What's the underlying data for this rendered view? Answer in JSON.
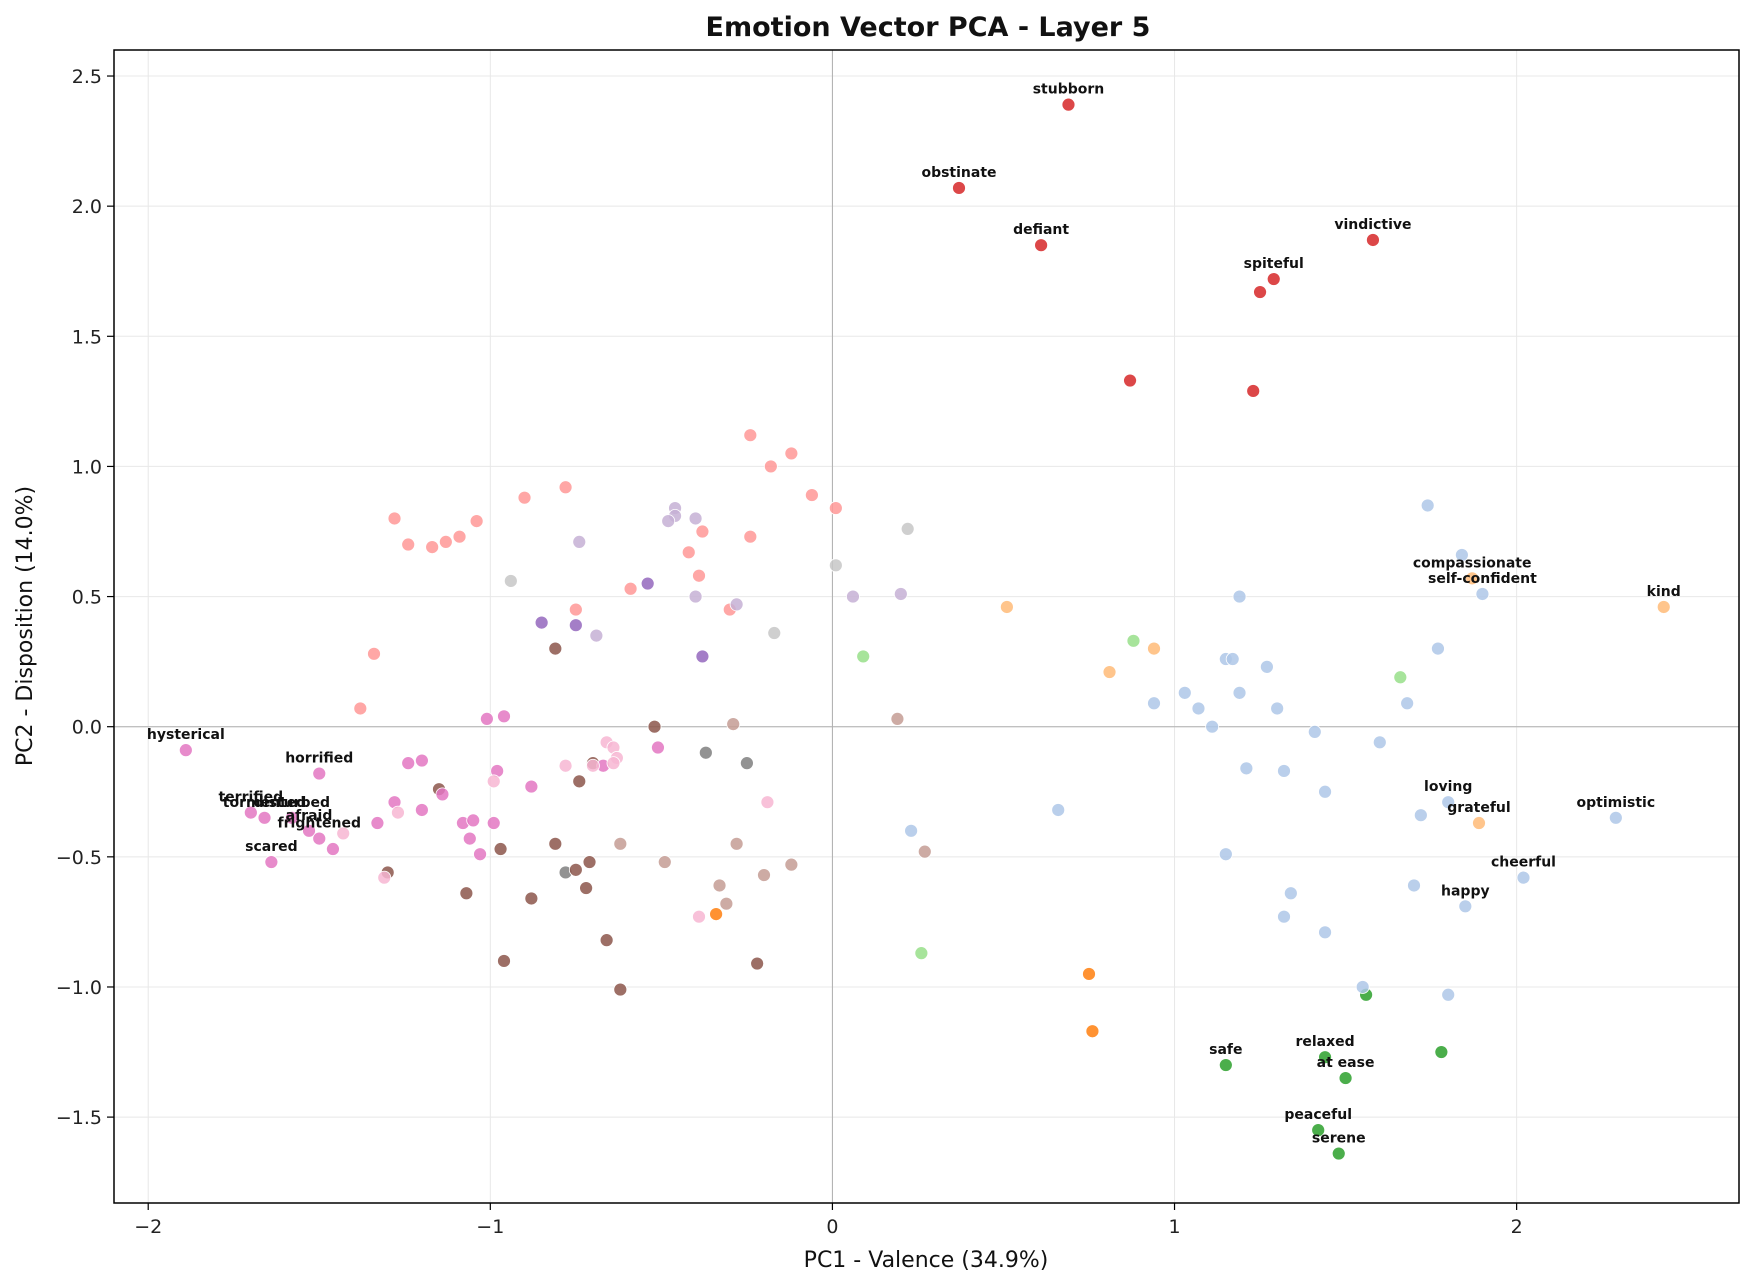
{
  "chart_data": {
    "type": "scatter",
    "title": "Emotion Vector PCA - Layer 5",
    "xlabel": "PC1 - Valence (34.9%)",
    "ylabel": "PC2 - Disposition (14.0%)",
    "xlim": [
      -2.1,
      2.65
    ],
    "ylim": [
      -1.83,
      2.6
    ],
    "xticks": [
      -2,
      -1,
      0,
      1,
      2
    ],
    "xtick_labels": [
      "−2",
      "−1",
      "0",
      "1",
      "2"
    ],
    "yticks": [
      -1.5,
      -1.0,
      -0.5,
      0.0,
      0.5,
      1.0,
      1.5,
      2.0,
      2.5
    ],
    "ytick_labels": [
      "−1.5",
      "−1.0",
      "−0.5",
      "0.0",
      "0.5",
      "1.0",
      "1.5",
      "2.0",
      "2.5"
    ],
    "grid": true,
    "zero_lines": true,
    "series": [
      {
        "color": "#d62728",
        "points": [
          [
            0.69,
            2.39,
            "stubborn"
          ],
          [
            0.37,
            2.07,
            "obstinate"
          ],
          [
            0.61,
            1.85,
            "defiant"
          ],
          [
            1.58,
            1.87,
            "vindictive"
          ],
          [
            1.29,
            1.72,
            "spiteful"
          ],
          [
            1.25,
            1.67,
            ""
          ],
          [
            0.87,
            1.33,
            ""
          ],
          [
            1.23,
            1.29,
            ""
          ]
        ]
      },
      {
        "color": "#ff9896",
        "points": [
          [
            -0.24,
            1.12,
            ""
          ],
          [
            -0.12,
            1.05,
            ""
          ],
          [
            -0.18,
            1.0,
            ""
          ],
          [
            -0.06,
            0.89,
            ""
          ],
          [
            0.01,
            0.84,
            ""
          ],
          [
            -0.78,
            0.92,
            ""
          ],
          [
            -0.9,
            0.88,
            ""
          ],
          [
            -1.28,
            0.8,
            ""
          ],
          [
            -1.04,
            0.79,
            ""
          ],
          [
            -1.09,
            0.73,
            ""
          ],
          [
            -1.13,
            0.71,
            ""
          ],
          [
            -1.17,
            0.69,
            ""
          ],
          [
            -1.24,
            0.7,
            ""
          ],
          [
            -0.38,
            0.75,
            ""
          ],
          [
            -0.24,
            0.73,
            ""
          ],
          [
            -0.42,
            0.67,
            ""
          ],
          [
            -0.39,
            0.58,
            ""
          ],
          [
            -0.59,
            0.53,
            ""
          ],
          [
            -0.75,
            0.45,
            ""
          ],
          [
            -0.3,
            0.45,
            ""
          ],
          [
            -1.34,
            0.28,
            ""
          ],
          [
            -1.38,
            0.07,
            ""
          ]
        ]
      },
      {
        "color": "#c5b0d5",
        "points": [
          [
            -0.46,
            0.84,
            ""
          ],
          [
            -0.46,
            0.81,
            ""
          ],
          [
            -0.48,
            0.79,
            ""
          ],
          [
            -0.4,
            0.8,
            ""
          ],
          [
            -0.74,
            0.71,
            ""
          ],
          [
            -0.4,
            0.5,
            ""
          ],
          [
            -0.28,
            0.47,
            ""
          ],
          [
            -0.69,
            0.35,
            ""
          ],
          [
            0.06,
            0.5,
            ""
          ],
          [
            0.2,
            0.51,
            ""
          ]
        ]
      },
      {
        "color": "#9467bd",
        "points": [
          [
            -0.54,
            0.55,
            ""
          ],
          [
            -0.85,
            0.4,
            ""
          ],
          [
            -0.75,
            0.39,
            ""
          ],
          [
            -0.38,
            0.27,
            ""
          ]
        ]
      },
      {
        "color": "#c7c7c7",
        "points": [
          [
            -0.94,
            0.56,
            ""
          ],
          [
            0.01,
            0.62,
            ""
          ],
          [
            0.22,
            0.76,
            ""
          ],
          [
            -0.17,
            0.36,
            ""
          ]
        ]
      },
      {
        "color": "#7f7f7f",
        "points": [
          [
            -0.37,
            -0.1,
            ""
          ],
          [
            -0.25,
            -0.14,
            ""
          ],
          [
            -0.78,
            -0.56,
            ""
          ]
        ]
      },
      {
        "color": "#8c564b",
        "points": [
          [
            -0.81,
            0.3,
            ""
          ],
          [
            -0.52,
            0.0,
            ""
          ],
          [
            -0.7,
            -0.14,
            ""
          ],
          [
            -0.74,
            -0.21,
            ""
          ],
          [
            -1.15,
            -0.24,
            ""
          ],
          [
            -0.81,
            -0.45,
            ""
          ],
          [
            -0.97,
            -0.47,
            ""
          ],
          [
            -0.71,
            -0.52,
            ""
          ],
          [
            -0.75,
            -0.55,
            ""
          ],
          [
            -1.3,
            -0.56,
            ""
          ],
          [
            -0.72,
            -0.62,
            ""
          ],
          [
            -1.07,
            -0.64,
            ""
          ],
          [
            -0.88,
            -0.66,
            ""
          ],
          [
            -0.66,
            -0.82,
            ""
          ],
          [
            -0.96,
            -0.9,
            ""
          ],
          [
            -0.22,
            -0.91,
            ""
          ],
          [
            -0.62,
            -1.01,
            ""
          ]
        ]
      },
      {
        "color": "#c49c94",
        "points": [
          [
            -0.29,
            0.01,
            ""
          ],
          [
            0.19,
            0.03,
            ""
          ],
          [
            -0.62,
            -0.45,
            ""
          ],
          [
            -0.28,
            -0.45,
            ""
          ],
          [
            -0.49,
            -0.52,
            ""
          ],
          [
            0.27,
            -0.48,
            ""
          ],
          [
            -0.12,
            -0.53,
            ""
          ],
          [
            -0.2,
            -0.57,
            ""
          ],
          [
            -0.33,
            -0.61,
            ""
          ],
          [
            -0.31,
            -0.68,
            ""
          ]
        ]
      },
      {
        "color": "#e377c2",
        "points": [
          [
            -1.89,
            -0.09,
            "hysterical"
          ],
          [
            -1.5,
            -0.18,
            "horrified"
          ],
          [
            -1.7,
            -0.33,
            "terrified"
          ],
          [
            -1.66,
            -0.35,
            "tormented"
          ],
          [
            -1.58,
            -0.35,
            "disturbed"
          ],
          [
            -1.53,
            -0.4,
            "afraid"
          ],
          [
            -1.5,
            -0.43,
            "frightened"
          ],
          [
            -1.64,
            -0.52,
            "scared"
          ],
          [
            -1.46,
            -0.47,
            ""
          ],
          [
            -1.01,
            0.03,
            ""
          ],
          [
            -0.96,
            0.04,
            ""
          ],
          [
            -1.24,
            -0.14,
            ""
          ],
          [
            -1.2,
            -0.13,
            ""
          ],
          [
            -0.98,
            -0.17,
            ""
          ],
          [
            -0.51,
            -0.08,
            ""
          ],
          [
            -0.67,
            -0.15,
            ""
          ],
          [
            -0.88,
            -0.23,
            ""
          ],
          [
            -1.14,
            -0.26,
            ""
          ],
          [
            -1.28,
            -0.29,
            ""
          ],
          [
            -1.2,
            -0.32,
            ""
          ],
          [
            -1.33,
            -0.37,
            ""
          ],
          [
            -1.08,
            -0.37,
            ""
          ],
          [
            -1.05,
            -0.36,
            ""
          ],
          [
            -0.99,
            -0.37,
            ""
          ],
          [
            -1.06,
            -0.43,
            ""
          ],
          [
            -1.03,
            -0.49,
            ""
          ]
        ]
      },
      {
        "color": "#f7b6d2",
        "points": [
          [
            -0.66,
            -0.06,
            ""
          ],
          [
            -0.64,
            -0.08,
            ""
          ],
          [
            -0.63,
            -0.12,
            ""
          ],
          [
            -0.64,
            -0.14,
            ""
          ],
          [
            -0.7,
            -0.15,
            ""
          ],
          [
            -0.78,
            -0.15,
            ""
          ],
          [
            -0.99,
            -0.21,
            ""
          ],
          [
            -0.19,
            -0.29,
            ""
          ],
          [
            -1.27,
            -0.33,
            ""
          ],
          [
            -1.43,
            -0.41,
            ""
          ],
          [
            -1.31,
            -0.58,
            ""
          ],
          [
            -0.39,
            -0.73,
            ""
          ]
        ]
      },
      {
        "color": "#ff7f0e",
        "points": [
          [
            -0.34,
            -0.72,
            ""
          ],
          [
            0.75,
            -0.95,
            ""
          ],
          [
            0.76,
            -1.17,
            ""
          ]
        ]
      },
      {
        "color": "#ffbb78",
        "points": [
          [
            2.43,
            0.46,
            "kind"
          ],
          [
            1.87,
            0.57,
            "compassionate"
          ],
          [
            1.89,
            -0.37,
            "grateful"
          ],
          [
            0.51,
            0.46,
            ""
          ],
          [
            0.94,
            0.3,
            ""
          ],
          [
            0.81,
            0.21,
            ""
          ]
        ]
      },
      {
        "color": "#98df8a",
        "points": [
          [
            0.88,
            0.33,
            ""
          ],
          [
            0.09,
            0.27,
            ""
          ],
          [
            1.66,
            0.19,
            ""
          ],
          [
            0.26,
            -0.87,
            ""
          ]
        ]
      },
      {
        "color": "#2ca02c",
        "points": [
          [
            1.15,
            -1.3,
            "safe"
          ],
          [
            1.44,
            -1.27,
            "relaxed"
          ],
          [
            1.5,
            -1.35,
            "at ease"
          ],
          [
            1.42,
            -1.55,
            "peaceful"
          ],
          [
            1.48,
            -1.64,
            "serene"
          ],
          [
            1.56,
            -1.03,
            ""
          ],
          [
            1.78,
            -1.25,
            ""
          ]
        ]
      },
      {
        "color": "#aec7e8",
        "points": [
          [
            2.29,
            -0.35,
            "optimistic"
          ],
          [
            2.02,
            -0.58,
            "cheerful"
          ],
          [
            1.85,
            -0.69,
            "happy"
          ],
          [
            1.8,
            -0.29,
            "loving"
          ],
          [
            1.9,
            0.51,
            "self-confident"
          ],
          [
            1.74,
            0.85,
            ""
          ],
          [
            1.84,
            0.66,
            ""
          ],
          [
            1.77,
            0.3,
            ""
          ],
          [
            1.68,
            0.09,
            ""
          ],
          [
            1.6,
            -0.06,
            ""
          ],
          [
            1.19,
            0.5,
            ""
          ],
          [
            1.15,
            0.26,
            ""
          ],
          [
            1.17,
            0.26,
            ""
          ],
          [
            1.27,
            0.23,
            ""
          ],
          [
            1.19,
            0.13,
            ""
          ],
          [
            1.03,
            0.13,
            ""
          ],
          [
            1.07,
            0.07,
            ""
          ],
          [
            0.94,
            0.09,
            ""
          ],
          [
            1.3,
            0.07,
            ""
          ],
          [
            1.11,
            0.0,
            ""
          ],
          [
            1.41,
            -0.02,
            ""
          ],
          [
            1.21,
            -0.16,
            ""
          ],
          [
            1.32,
            -0.17,
            ""
          ],
          [
            1.44,
            -0.25,
            ""
          ],
          [
            1.72,
            -0.34,
            ""
          ],
          [
            0.66,
            -0.32,
            ""
          ],
          [
            0.23,
            -0.4,
            ""
          ],
          [
            1.15,
            -0.49,
            ""
          ],
          [
            1.7,
            -0.61,
            ""
          ],
          [
            1.34,
            -0.64,
            ""
          ],
          [
            1.32,
            -0.73,
            ""
          ],
          [
            1.44,
            -0.79,
            ""
          ],
          [
            1.55,
            -1.0,
            ""
          ],
          [
            1.8,
            -1.03,
            ""
          ]
        ]
      }
    ]
  }
}
